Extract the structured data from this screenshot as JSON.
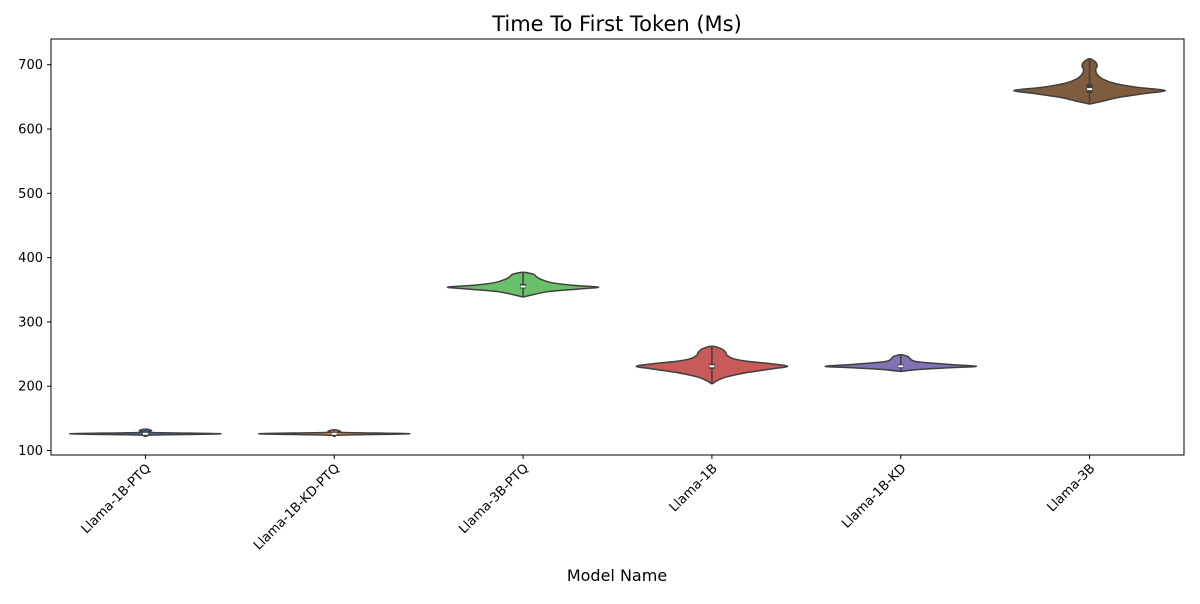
{
  "chart_data": {
    "type": "violin",
    "title": "Time To First Token (Ms)",
    "xlabel": "Model Name",
    "ylabel": "",
    "ylim": [
      93,
      740
    ],
    "yticks": [
      100,
      200,
      300,
      400,
      500,
      600,
      700
    ],
    "grid": false,
    "legend": "none",
    "categories": [
      "Llama-1B-PTQ",
      "Llama-1B-KD-PTQ",
      "Llama-3B-PTQ",
      "Llama-1B",
      "Llama-1B-KD",
      "Llama-3B"
    ],
    "series": [
      {
        "category": "Llama-1B-PTQ",
        "color": "#4c72b0",
        "min": 122,
        "q1": 124,
        "median": 126,
        "q3": 129,
        "max": 133,
        "profile": [
          [
            122,
            0.01
          ],
          [
            124,
            0.06
          ],
          [
            126,
            1.0
          ],
          [
            128,
            0.1
          ],
          [
            131,
            0.08
          ],
          [
            133,
            0.03
          ]
        ]
      },
      {
        "category": "Llama-1B-KD-PTQ",
        "color": "#dd8452",
        "min": 122,
        "q1": 124,
        "median": 126,
        "q3": 129,
        "max": 132,
        "profile": [
          [
            122,
            0.01
          ],
          [
            124,
            0.08
          ],
          [
            126,
            1.0
          ],
          [
            128,
            0.12
          ],
          [
            130,
            0.08
          ],
          [
            132,
            0.03
          ]
        ]
      },
      {
        "category": "Llama-3B-PTQ",
        "color": "#6abf69",
        "min": 339,
        "q1": 352,
        "median": 355,
        "q3": 359,
        "max": 377,
        "profile": [
          [
            339,
            0.01
          ],
          [
            342,
            0.12
          ],
          [
            347,
            0.33
          ],
          [
            351,
            0.72
          ],
          [
            354,
            1.0
          ],
          [
            357,
            0.65
          ],
          [
            361,
            0.38
          ],
          [
            366,
            0.24
          ],
          [
            370,
            0.18
          ],
          [
            374,
            0.14
          ],
          [
            377,
            0.03
          ]
        ]
      },
      {
        "category": "Llama-1B",
        "color": "#c85a5a",
        "min": 204,
        "q1": 227,
        "median": 231,
        "q3": 235,
        "max": 262,
        "profile": [
          [
            204,
            0.01
          ],
          [
            208,
            0.06
          ],
          [
            214,
            0.18
          ],
          [
            221,
            0.45
          ],
          [
            227,
            0.8
          ],
          [
            231,
            1.0
          ],
          [
            235,
            0.78
          ],
          [
            239,
            0.45
          ],
          [
            243,
            0.28
          ],
          [
            248,
            0.2
          ],
          [
            253,
            0.18
          ],
          [
            258,
            0.13
          ],
          [
            262,
            0.03
          ]
        ]
      },
      {
        "category": "Llama-1B-KD",
        "color": "#8172b3",
        "min": 223,
        "q1": 228,
        "median": 231,
        "q3": 234,
        "max": 249,
        "profile": [
          [
            223,
            0.01
          ],
          [
            226,
            0.24
          ],
          [
            229,
            0.7
          ],
          [
            231,
            1.0
          ],
          [
            234,
            0.62
          ],
          [
            238,
            0.22
          ],
          [
            242,
            0.13
          ],
          [
            246,
            0.1
          ],
          [
            249,
            0.02
          ]
        ]
      },
      {
        "category": "Llama-3B",
        "color": "#7f5c3e",
        "min": 639,
        "q1": 656,
        "median": 662,
        "q3": 670,
        "max": 709,
        "profile": [
          [
            639,
            0.01
          ],
          [
            643,
            0.16
          ],
          [
            649,
            0.38
          ],
          [
            655,
            0.72
          ],
          [
            660,
            1.0
          ],
          [
            665,
            0.62
          ],
          [
            671,
            0.33
          ],
          [
            678,
            0.17
          ],
          [
            685,
            0.1
          ],
          [
            692,
            0.08
          ],
          [
            698,
            0.1
          ],
          [
            704,
            0.08
          ],
          [
            709,
            0.02
          ]
        ]
      }
    ]
  }
}
